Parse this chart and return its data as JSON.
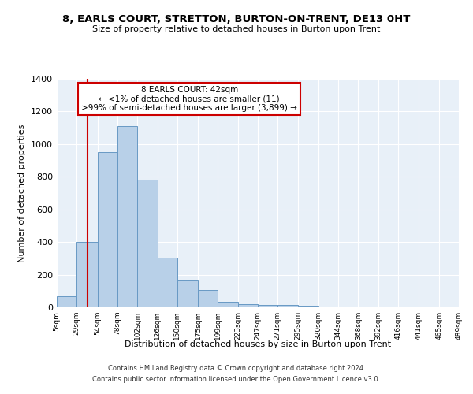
{
  "title": "8, EARLS COURT, STRETTON, BURTON-ON-TRENT, DE13 0HT",
  "subtitle": "Size of property relative to detached houses in Burton upon Trent",
  "xlabel": "Distribution of detached houses by size in Burton upon Trent",
  "ylabel": "Number of detached properties",
  "bar_color": "#b8d0e8",
  "bar_edge_color": "#6899c4",
  "background_color": "#e8f0f8",
  "grid_color": "#ffffff",
  "annotation_text": "8 EARLS COURT: 42sqm\n← <1% of detached houses are smaller (11)\n>99% of semi-detached houses are larger (3,899) →",
  "vline_x": 42,
  "vline_color": "#cc0000",
  "annotation_box_color": "#ffffff",
  "annotation_box_edge": "#cc0000",
  "bins": [
    5,
    29,
    54,
    78,
    102,
    126,
    150,
    175,
    199,
    223,
    247,
    271,
    295,
    320,
    344,
    368,
    392,
    416,
    441,
    465,
    489
  ],
  "counts": [
    70,
    400,
    950,
    1110,
    780,
    305,
    170,
    105,
    35,
    20,
    15,
    13,
    10,
    5,
    3,
    2,
    0,
    0,
    0,
    0
  ],
  "ylim": [
    0,
    1400
  ],
  "yticks": [
    0,
    200,
    400,
    600,
    800,
    1000,
    1200,
    1400
  ],
  "footer1": "Contains HM Land Registry data © Crown copyright and database right 2024.",
  "footer2": "Contains public sector information licensed under the Open Government Licence v3.0."
}
